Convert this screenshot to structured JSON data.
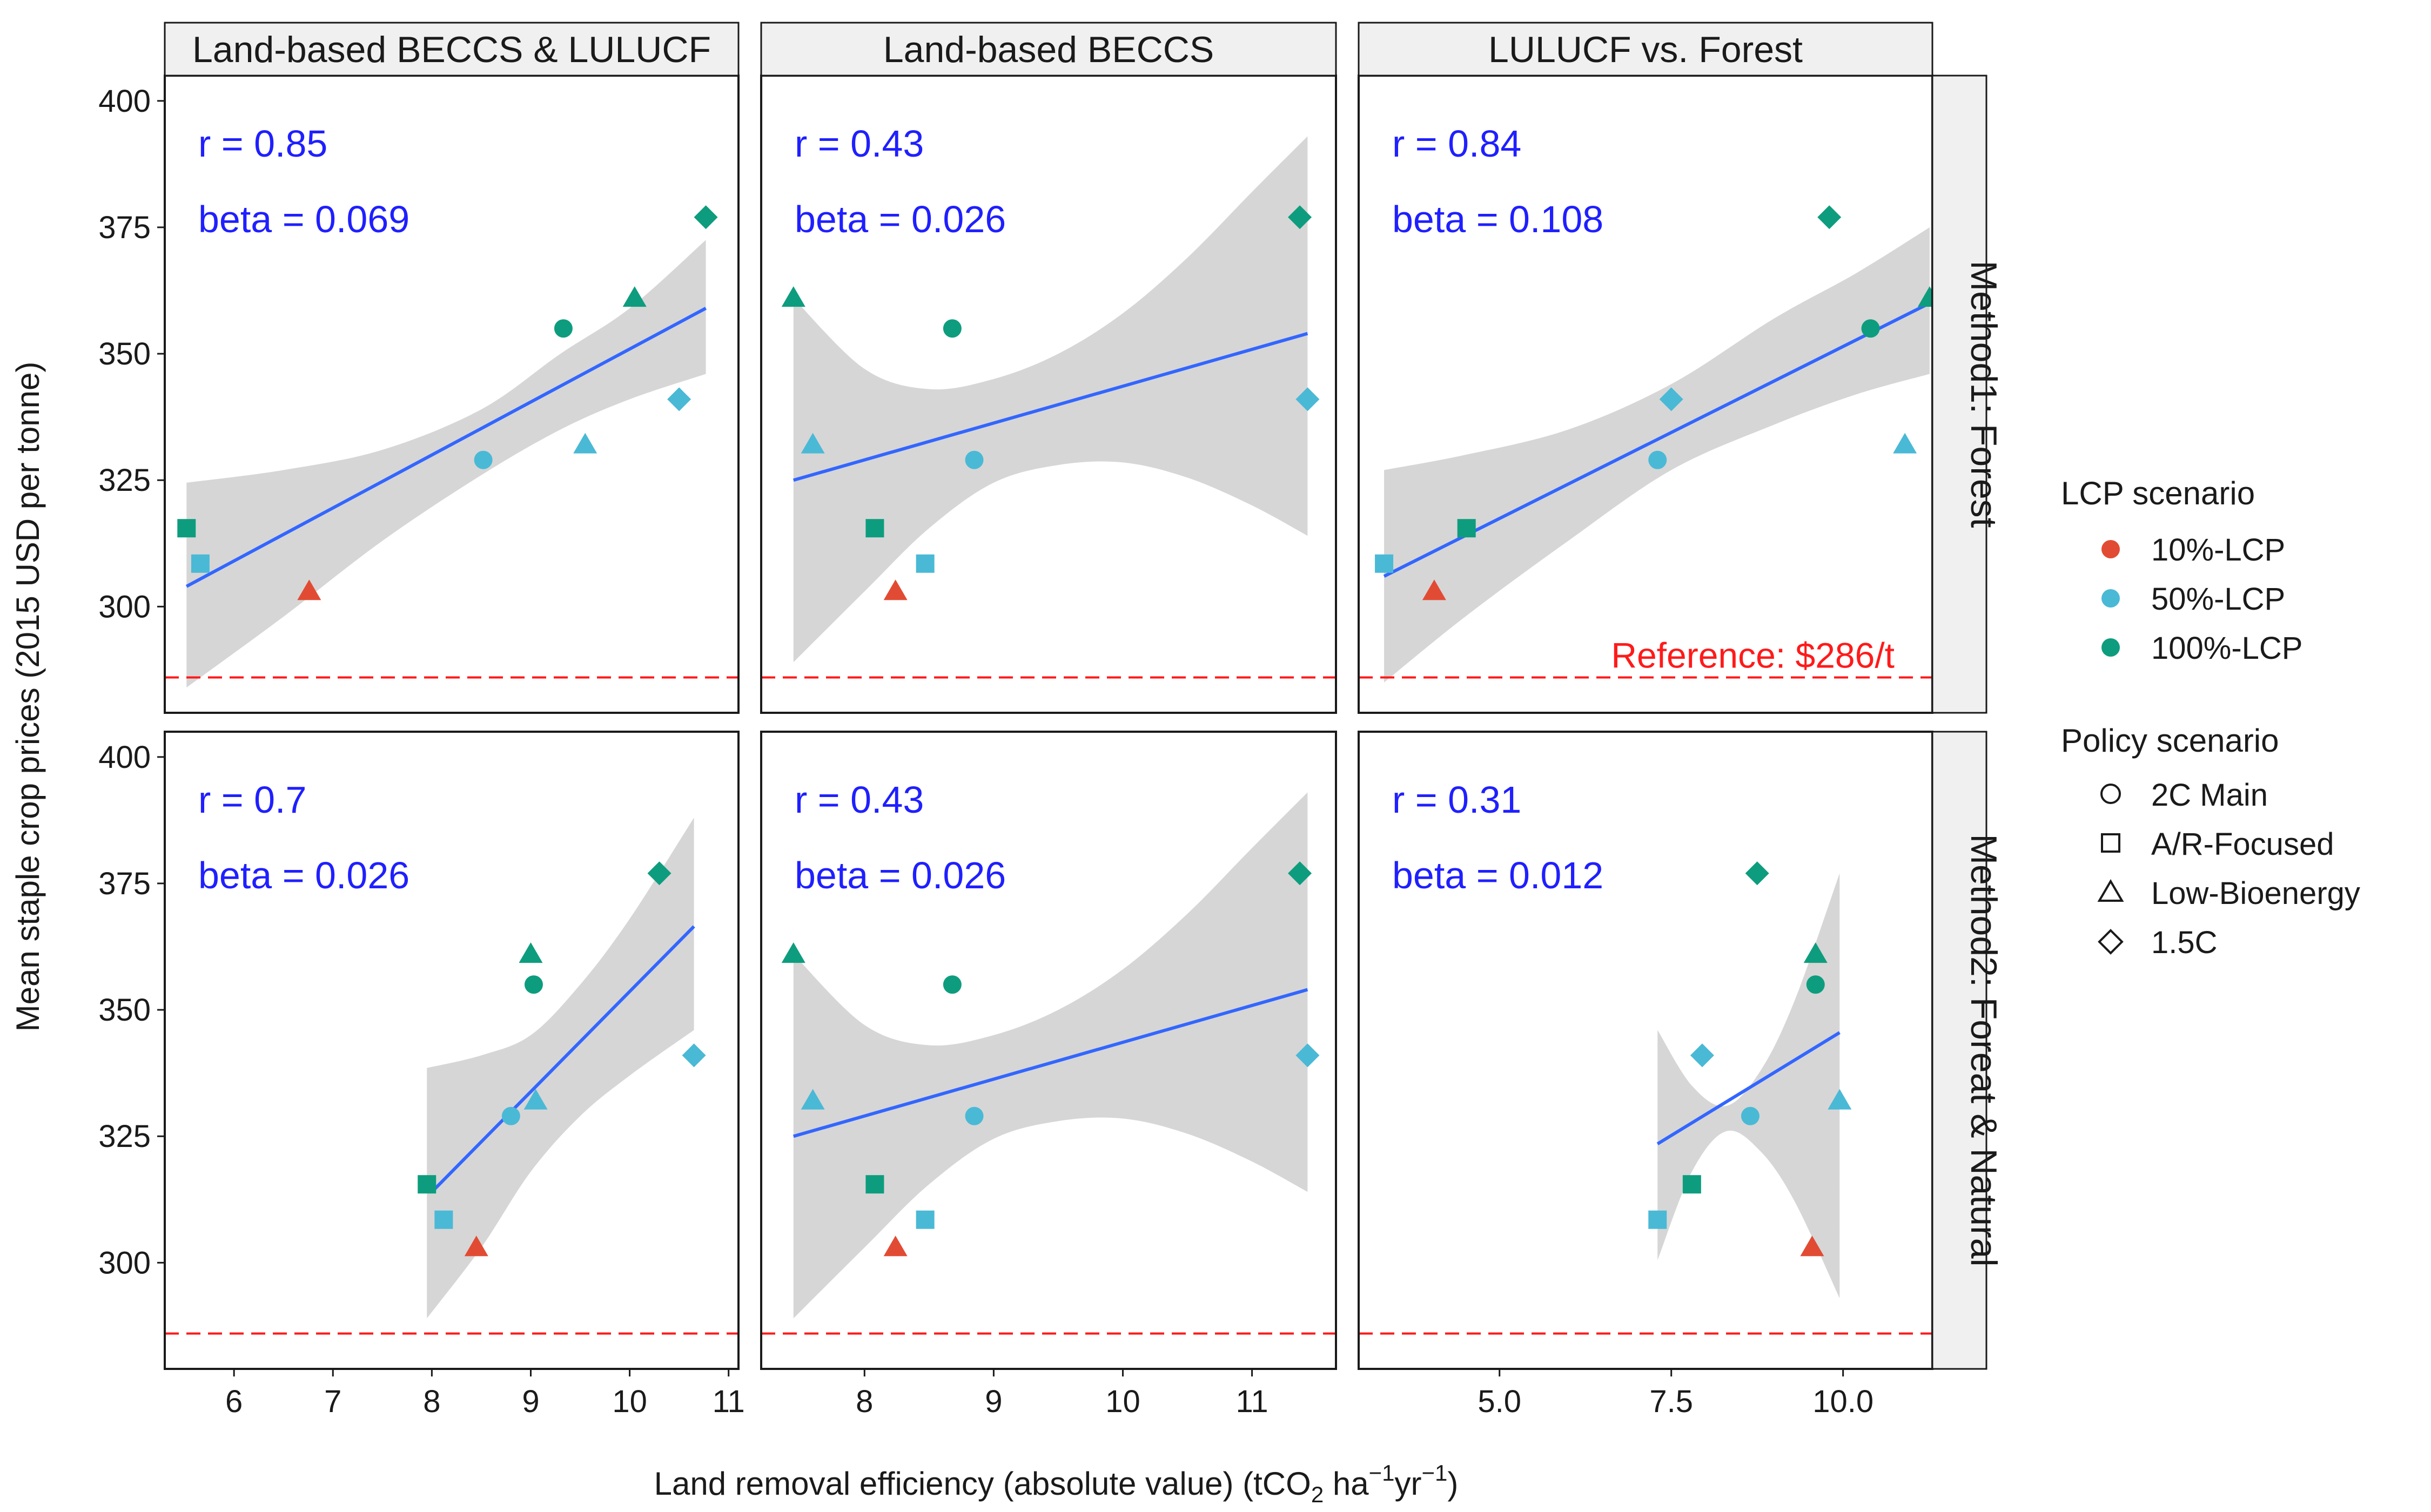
{
  "figure": {
    "ylabel": "Mean staple crop prices (2015 USD per tonne)",
    "xlabel_main": "Land removal efficiency (absolute value) (tCO",
    "xlabel_sub": "2",
    "xlabel_mid": " ha",
    "xlabel_sup1": "−1",
    "xlabel_yr": "yr",
    "xlabel_sup2": "−1",
    "xlabel_end": ")",
    "reference_label": "Reference: $286/t"
  },
  "colors": {
    "10%-LCP": "#e24b33",
    "50%-LCP": "#4ab9d6",
    "100%-LCP": "#0d9d7e",
    "fit_line": "#3366ff",
    "ribbon": "#d4d4d4",
    "stat_text": "#1f1fff",
    "reference": "#ff1a1a",
    "strip_bg": "#f0f0f0"
  },
  "legend": {
    "lcp_title": "LCP scenario",
    "lcp_items": [
      "10%-LCP",
      "50%-LCP",
      "100%-LCP"
    ],
    "policy_title": "Policy scenario",
    "policy_items": [
      {
        "label": "2C Main",
        "shape": "circle"
      },
      {
        "label": "A/R-Focused",
        "shape": "square"
      },
      {
        "label": "Low-Bioenergy",
        "shape": "triangle"
      },
      {
        "label": "1.5C",
        "shape": "diamond"
      }
    ]
  },
  "chart_data": {
    "type": "scatter",
    "column_labels": [
      "Land-based BECCS & LULUCF",
      "Land-based BECCS",
      "LULUCF vs. Forest"
    ],
    "row_labels": [
      "Method1: Forest",
      "Method2: Foreat & Natural"
    ],
    "ylim": [
      279,
      405
    ],
    "yticks": [
      300,
      325,
      350,
      375,
      400
    ],
    "reference_y": 286,
    "x_axes": [
      {
        "xlim": [
          5.3,
          11.1
        ],
        "ticks": [
          6,
          7,
          8,
          9,
          10,
          11
        ],
        "tick_labels": [
          "6",
          "7",
          "8",
          "9",
          "10",
          "11"
        ]
      },
      {
        "xlim": [
          7.2,
          11.65
        ],
        "ticks": [
          8,
          9,
          10,
          11
        ],
        "tick_labels": [
          "8",
          "9",
          "10",
          "11"
        ]
      },
      {
        "xlim": [
          2.95,
          11.3
        ],
        "ticks": [
          5.0,
          7.5,
          10.0
        ],
        "tick_labels": [
          "5.0",
          "7.5",
          "10.0"
        ]
      }
    ],
    "panels": [
      {
        "row": 0,
        "col": 0,
        "r": "r = 0.85",
        "beta": "beta = 0.069",
        "points": [
          {
            "x": 5.52,
            "y": 315.5,
            "lcp": "100%-LCP",
            "policy": "A/R-Focused"
          },
          {
            "x": 5.66,
            "y": 308.5,
            "lcp": "50%-LCP",
            "policy": "A/R-Focused"
          },
          {
            "x": 6.76,
            "y": 303,
            "lcp": "10%-LCP",
            "policy": "Low-Bioenergy"
          },
          {
            "x": 8.52,
            "y": 329,
            "lcp": "50%-LCP",
            "policy": "2C Main"
          },
          {
            "x": 9.33,
            "y": 355,
            "lcp": "100%-LCP",
            "policy": "2C Main"
          },
          {
            "x": 9.55,
            "y": 332,
            "lcp": "50%-LCP",
            "policy": "Low-Bioenergy"
          },
          {
            "x": 10.05,
            "y": 361,
            "lcp": "100%-LCP",
            "policy": "Low-Bioenergy"
          },
          {
            "x": 10.5,
            "y": 341,
            "lcp": "50%-LCP",
            "policy": "1.5C"
          },
          {
            "x": 10.77,
            "y": 377,
            "lcp": "100%-LCP",
            "policy": "1.5C"
          }
        ],
        "fit": {
          "x": [
            5.52,
            10.77
          ],
          "y": [
            304,
            359
          ]
        },
        "band": {
          "x": [
            5.52,
            6.5,
            7.5,
            8.5,
            9.3,
            10.0,
            10.77
          ],
          "lower": [
            284,
            298,
            313,
            326,
            335,
            341,
            346
          ],
          "upper": [
            324.5,
            327,
            331,
            339,
            350,
            359,
            372.5
          ]
        }
      },
      {
        "row": 0,
        "col": 1,
        "r": "r = 0.43",
        "beta": "beta = 0.026",
        "points": [
          {
            "x": 7.45,
            "y": 361,
            "lcp": "100%-LCP",
            "policy": "Low-Bioenergy"
          },
          {
            "x": 7.6,
            "y": 332,
            "lcp": "50%-LCP",
            "policy": "Low-Bioenergy"
          },
          {
            "x": 8.08,
            "y": 315.5,
            "lcp": "100%-LCP",
            "policy": "A/R-Focused"
          },
          {
            "x": 8.24,
            "y": 303,
            "lcp": "10%-LCP",
            "policy": "Low-Bioenergy"
          },
          {
            "x": 8.47,
            "y": 308.5,
            "lcp": "50%-LCP",
            "policy": "A/R-Focused"
          },
          {
            "x": 8.68,
            "y": 355,
            "lcp": "100%-LCP",
            "policy": "2C Main"
          },
          {
            "x": 8.85,
            "y": 329,
            "lcp": "50%-LCP",
            "policy": "2C Main"
          },
          {
            "x": 11.37,
            "y": 377,
            "lcp": "100%-LCP",
            "policy": "1.5C"
          },
          {
            "x": 11.43,
            "y": 341,
            "lcp": "50%-LCP",
            "policy": "1.5C"
          }
        ],
        "fit": {
          "x": [
            7.45,
            11.43
          ],
          "y": [
            325,
            354
          ]
        },
        "band": {
          "x": [
            7.45,
            8.0,
            8.5,
            9.0,
            9.5,
            10.0,
            10.5,
            11.0,
            11.43
          ],
          "lower": [
            289,
            303,
            315.5,
            324.5,
            328,
            328.5,
            325.5,
            320,
            314
          ]
        },
        "band_upper": {
          "x": [
            7.45,
            8.0,
            8.5,
            9.0,
            9.5,
            10.0,
            10.5,
            11.0,
            11.43
          ],
          "upper": [
            361,
            347,
            343,
            345,
            350,
            358,
            369,
            382,
            393
          ]
        }
      },
      {
        "row": 0,
        "col": 2,
        "r": "r = 0.84",
        "beta": "beta = 0.108",
        "points": [
          {
            "x": 3.32,
            "y": 308.5,
            "lcp": "50%-LCP",
            "policy": "A/R-Focused"
          },
          {
            "x": 4.05,
            "y": 303,
            "lcp": "10%-LCP",
            "policy": "Low-Bioenergy"
          },
          {
            "x": 4.52,
            "y": 315.5,
            "lcp": "100%-LCP",
            "policy": "A/R-Focused"
          },
          {
            "x": 7.3,
            "y": 329,
            "lcp": "50%-LCP",
            "policy": "2C Main"
          },
          {
            "x": 7.5,
            "y": 341,
            "lcp": "50%-LCP",
            "policy": "1.5C"
          },
          {
            "x": 9.8,
            "y": 377,
            "lcp": "100%-LCP",
            "policy": "1.5C"
          },
          {
            "x": 10.4,
            "y": 355,
            "lcp": "100%-LCP",
            "policy": "2C Main"
          },
          {
            "x": 10.9,
            "y": 332,
            "lcp": "50%-LCP",
            "policy": "Low-Bioenergy"
          },
          {
            "x": 11.26,
            "y": 361,
            "lcp": "100%-LCP",
            "policy": "Low-Bioenergy"
          }
        ],
        "fit": {
          "x": [
            3.32,
            11.26
          ],
          "y": [
            306,
            360
          ]
        },
        "band": {
          "x": [
            3.32,
            4.5,
            6.0,
            7.5,
            9.0,
            10.2,
            11.26
          ],
          "lower": [
            285,
            298,
            313,
            327,
            336,
            342,
            346
          ]
        },
        "band_upper": {
          "x": [
            3.32,
            4.5,
            6.0,
            7.5,
            9.0,
            10.2,
            11.26
          ],
          "upper": [
            327,
            330,
            335,
            344,
            357,
            366,
            375
          ]
        }
      },
      {
        "row": 1,
        "col": 0,
        "r": "r = 0.7",
        "beta": "beta = 0.026",
        "points": [
          {
            "x": 7.95,
            "y": 315.5,
            "lcp": "100%-LCP",
            "policy": "A/R-Focused"
          },
          {
            "x": 8.12,
            "y": 308.5,
            "lcp": "50%-LCP",
            "policy": "A/R-Focused"
          },
          {
            "x": 8.45,
            "y": 303,
            "lcp": "10%-LCP",
            "policy": "Low-Bioenergy"
          },
          {
            "x": 8.8,
            "y": 329,
            "lcp": "50%-LCP",
            "policy": "2C Main"
          },
          {
            "x": 9.0,
            "y": 361,
            "lcp": "100%-LCP",
            "policy": "Low-Bioenergy"
          },
          {
            "x": 9.03,
            "y": 355,
            "lcp": "100%-LCP",
            "policy": "2C Main"
          },
          {
            "x": 9.05,
            "y": 332,
            "lcp": "50%-LCP",
            "policy": "Low-Bioenergy"
          },
          {
            "x": 10.3,
            "y": 377,
            "lcp": "100%-LCP",
            "policy": "1.5C"
          },
          {
            "x": 10.65,
            "y": 341,
            "lcp": "50%-LCP",
            "policy": "1.5C"
          }
        ],
        "fit": {
          "x": [
            8.0,
            10.65
          ],
          "y": [
            314,
            366.5
          ]
        },
        "band": {
          "x": [
            7.95,
            8.5,
            9.0,
            9.5,
            10.0,
            10.65
          ],
          "lower": [
            289,
            303,
            318,
            329,
            337,
            346
          ]
        },
        "band_upper": {
          "x": [
            7.95,
            8.5,
            9.0,
            9.5,
            10.0,
            10.65
          ],
          "upper": [
            338.5,
            341,
            345,
            355,
            368,
            388
          ]
        }
      },
      {
        "row": 1,
        "col": 1,
        "r": "r = 0.43",
        "beta": "beta = 0.026",
        "points": [
          {
            "x": 7.45,
            "y": 361,
            "lcp": "100%-LCP",
            "policy": "Low-Bioenergy"
          },
          {
            "x": 7.6,
            "y": 332,
            "lcp": "50%-LCP",
            "policy": "Low-Bioenergy"
          },
          {
            "x": 8.08,
            "y": 315.5,
            "lcp": "100%-LCP",
            "policy": "A/R-Focused"
          },
          {
            "x": 8.24,
            "y": 303,
            "lcp": "10%-LCP",
            "policy": "Low-Bioenergy"
          },
          {
            "x": 8.47,
            "y": 308.5,
            "lcp": "50%-LCP",
            "policy": "A/R-Focused"
          },
          {
            "x": 8.68,
            "y": 355,
            "lcp": "100%-LCP",
            "policy": "2C Main"
          },
          {
            "x": 8.85,
            "y": 329,
            "lcp": "50%-LCP",
            "policy": "2C Main"
          },
          {
            "x": 11.37,
            "y": 377,
            "lcp": "100%-LCP",
            "policy": "1.5C"
          },
          {
            "x": 11.43,
            "y": 341,
            "lcp": "50%-LCP",
            "policy": "1.5C"
          }
        ],
        "fit": {
          "x": [
            7.45,
            11.43
          ],
          "y": [
            325,
            354
          ]
        },
        "band": {
          "x": [
            7.45,
            8.0,
            8.5,
            9.0,
            9.5,
            10.0,
            10.5,
            11.0,
            11.43
          ],
          "lower": [
            289,
            303,
            315.5,
            324.5,
            328,
            328.5,
            325.5,
            320,
            314
          ]
        },
        "band_upper": {
          "x": [
            7.45,
            8.0,
            8.5,
            9.0,
            9.5,
            10.0,
            10.5,
            11.0,
            11.43
          ],
          "upper": [
            361,
            347,
            343,
            345,
            350,
            358,
            369,
            382,
            393
          ]
        }
      },
      {
        "row": 1,
        "col": 2,
        "r": "r = 0.31",
        "beta": "beta = 0.012",
        "points": [
          {
            "x": 7.3,
            "y": 308.5,
            "lcp": "50%-LCP",
            "policy": "A/R-Focused"
          },
          {
            "x": 7.8,
            "y": 315.5,
            "lcp": "100%-LCP",
            "policy": "A/R-Focused"
          },
          {
            "x": 7.95,
            "y": 341,
            "lcp": "50%-LCP",
            "policy": "1.5C"
          },
          {
            "x": 8.65,
            "y": 329,
            "lcp": "50%-LCP",
            "policy": "2C Main"
          },
          {
            "x": 8.75,
            "y": 377,
            "lcp": "100%-LCP",
            "policy": "1.5C"
          },
          {
            "x": 9.55,
            "y": 303,
            "lcp": "10%-LCP",
            "policy": "Low-Bioenergy"
          },
          {
            "x": 9.6,
            "y": 355,
            "lcp": "100%-LCP",
            "policy": "2C Main"
          },
          {
            "x": 9.6,
            "y": 361,
            "lcp": "100%-LCP",
            "policy": "Low-Bioenergy"
          },
          {
            "x": 9.95,
            "y": 332,
            "lcp": "50%-LCP",
            "policy": "Low-Bioenergy"
          }
        ],
        "fit": {
          "x": [
            7.3,
            9.95
          ],
          "y": [
            323.5,
            345.5
          ]
        },
        "band": {
          "x": [
            7.3,
            7.8,
            8.3,
            8.8,
            9.3,
            9.95
          ],
          "lower": [
            300.5,
            318,
            326,
            322,
            312,
            293
          ]
        },
        "band_upper": {
          "x": [
            7.3,
            7.8,
            8.3,
            8.8,
            9.3,
            9.95
          ],
          "upper": [
            346,
            335,
            331,
            338,
            352,
            377
          ]
        }
      }
    ]
  }
}
